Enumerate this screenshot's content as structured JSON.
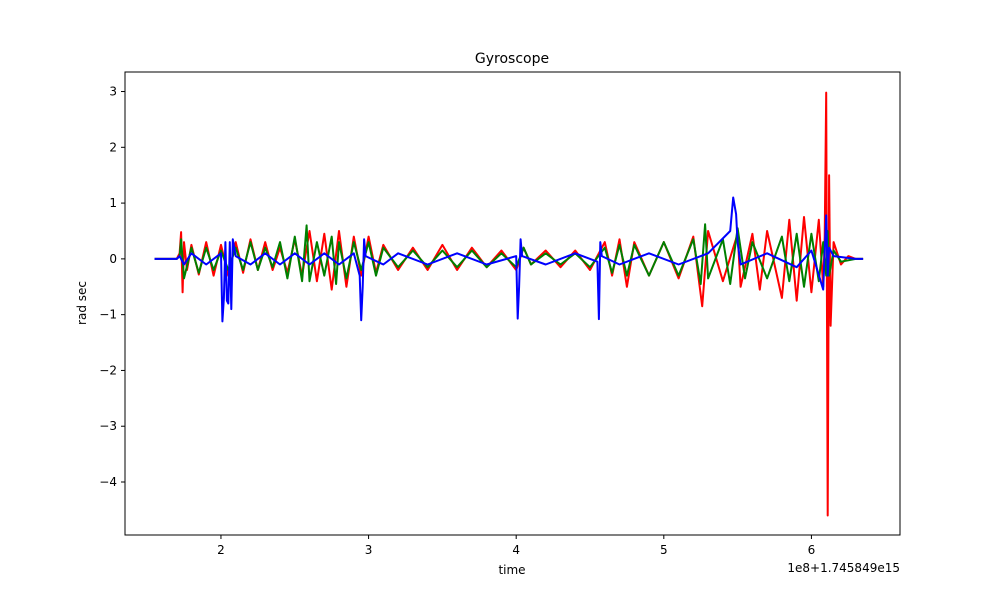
{
  "chart_data": {
    "type": "line",
    "title": "Gyroscope",
    "xlabel": "time",
    "ylabel": "rad sec",
    "x_offset_label": "1e8+1.745849e15",
    "xlim": [
      1.35,
      6.6
    ],
    "ylim": [
      -4.95,
      3.35
    ],
    "x_ticks": [
      2,
      3,
      4,
      5,
      6
    ],
    "y_ticks": [
      3,
      2,
      1,
      0,
      -1,
      -2,
      -3,
      -4
    ],
    "x_tick_labels": [
      "2",
      "3",
      "4",
      "5",
      "6"
    ],
    "y_tick_labels": [
      "3",
      "2",
      "1",
      "0",
      "−1",
      "−2",
      "−3",
      "−4"
    ],
    "grid": false,
    "legend": "none",
    "series": [
      {
        "color": "#ff0000",
        "points": [
          [
            1.55,
            0
          ],
          [
            1.7,
            0
          ],
          [
            1.72,
            0.1
          ],
          [
            1.73,
            0.48
          ],
          [
            1.74,
            -0.6
          ],
          [
            1.75,
            0.3
          ],
          [
            1.77,
            -0.2
          ],
          [
            1.8,
            0.25
          ],
          [
            1.85,
            -0.28
          ],
          [
            1.9,
            0.3
          ],
          [
            1.95,
            -0.3
          ],
          [
            2.0,
            0.25
          ],
          [
            2.05,
            -0.3
          ],
          [
            2.1,
            0.3
          ],
          [
            2.15,
            -0.25
          ],
          [
            2.2,
            0.35
          ],
          [
            2.25,
            -0.2
          ],
          [
            2.3,
            0.3
          ],
          [
            2.35,
            -0.2
          ],
          [
            2.4,
            0.2
          ],
          [
            2.45,
            -0.25
          ],
          [
            2.5,
            0.35
          ],
          [
            2.55,
            -0.3
          ],
          [
            2.6,
            0.5
          ],
          [
            2.65,
            -0.4
          ],
          [
            2.7,
            0.45
          ],
          [
            2.75,
            -0.55
          ],
          [
            2.8,
            0.5
          ],
          [
            2.85,
            -0.5
          ],
          [
            2.9,
            0.4
          ],
          [
            2.95,
            -0.3
          ],
          [
            3.0,
            0.4
          ],
          [
            3.05,
            -0.25
          ],
          [
            3.1,
            0.25
          ],
          [
            3.2,
            -0.2
          ],
          [
            3.3,
            0.2
          ],
          [
            3.4,
            -0.2
          ],
          [
            3.5,
            0.25
          ],
          [
            3.6,
            -0.2
          ],
          [
            3.7,
            0.2
          ],
          [
            3.8,
            -0.15
          ],
          [
            3.9,
            0.15
          ],
          [
            4.0,
            -0.2
          ],
          [
            4.05,
            0.2
          ],
          [
            4.1,
            -0.1
          ],
          [
            4.2,
            0.15
          ],
          [
            4.3,
            -0.15
          ],
          [
            4.4,
            0.15
          ],
          [
            4.5,
            -0.2
          ],
          [
            4.6,
            0.3
          ],
          [
            4.65,
            -0.3
          ],
          [
            4.7,
            0.35
          ],
          [
            4.75,
            -0.5
          ],
          [
            4.8,
            0.3
          ],
          [
            4.9,
            -0.3
          ],
          [
            5.0,
            0.3
          ],
          [
            5.1,
            -0.35
          ],
          [
            5.2,
            0.4
          ],
          [
            5.26,
            -0.85
          ],
          [
            5.3,
            0.5
          ],
          [
            5.4,
            -0.4
          ],
          [
            5.5,
            0.45
          ],
          [
            5.52,
            -0.5
          ],
          [
            5.6,
            0.45
          ],
          [
            5.65,
            -0.55
          ],
          [
            5.7,
            0.5
          ],
          [
            5.8,
            -0.7
          ],
          [
            5.85,
            0.7
          ],
          [
            5.9,
            -0.75
          ],
          [
            5.95,
            0.75
          ],
          [
            6.0,
            -0.6
          ],
          [
            6.05,
            0.7
          ],
          [
            6.08,
            -0.5
          ],
          [
            6.09,
            0.4
          ],
          [
            6.1,
            2.98
          ],
          [
            6.11,
            -4.6
          ],
          [
            6.12,
            1.5
          ],
          [
            6.13,
            -1.2
          ],
          [
            6.15,
            0.3
          ],
          [
            6.2,
            -0.1
          ],
          [
            6.25,
            0.05
          ],
          [
            6.3,
            0
          ],
          [
            6.35,
            0
          ]
        ]
      },
      {
        "color": "#008000",
        "points": [
          [
            1.55,
            0
          ],
          [
            1.7,
            0
          ],
          [
            1.72,
            0.05
          ],
          [
            1.73,
            0.35
          ],
          [
            1.75,
            -0.35
          ],
          [
            1.8,
            0.2
          ],
          [
            1.85,
            -0.25
          ],
          [
            1.9,
            0.2
          ],
          [
            1.95,
            -0.2
          ],
          [
            2.0,
            0.15
          ],
          [
            2.05,
            -0.2
          ],
          [
            2.1,
            0.2
          ],
          [
            2.15,
            -0.2
          ],
          [
            2.2,
            0.3
          ],
          [
            2.25,
            -0.2
          ],
          [
            2.3,
            0.2
          ],
          [
            2.35,
            -0.15
          ],
          [
            2.4,
            0.3
          ],
          [
            2.45,
            -0.35
          ],
          [
            2.5,
            0.4
          ],
          [
            2.55,
            -0.4
          ],
          [
            2.58,
            0.6
          ],
          [
            2.6,
            -0.4
          ],
          [
            2.65,
            0.3
          ],
          [
            2.7,
            -0.3
          ],
          [
            2.75,
            0.4
          ],
          [
            2.78,
            -0.45
          ],
          [
            2.8,
            0.3
          ],
          [
            2.85,
            -0.35
          ],
          [
            2.9,
            0.3
          ],
          [
            2.95,
            -0.2
          ],
          [
            3.0,
            0.3
          ],
          [
            3.05,
            -0.3
          ],
          [
            3.1,
            0.2
          ],
          [
            3.2,
            -0.15
          ],
          [
            3.3,
            0.15
          ],
          [
            3.4,
            -0.15
          ],
          [
            3.5,
            0.15
          ],
          [
            3.6,
            -0.15
          ],
          [
            3.7,
            0.15
          ],
          [
            3.8,
            -0.15
          ],
          [
            3.9,
            0.1
          ],
          [
            4.0,
            -0.15
          ],
          [
            4.05,
            0.2
          ],
          [
            4.1,
            -0.1
          ],
          [
            4.2,
            0.1
          ],
          [
            4.3,
            -0.1
          ],
          [
            4.4,
            0.1
          ],
          [
            4.5,
            -0.15
          ],
          [
            4.6,
            0.2
          ],
          [
            4.65,
            -0.25
          ],
          [
            4.7,
            0.25
          ],
          [
            4.75,
            -0.3
          ],
          [
            4.8,
            0.25
          ],
          [
            4.9,
            -0.3
          ],
          [
            5.0,
            0.3
          ],
          [
            5.1,
            -0.3
          ],
          [
            5.2,
            0.35
          ],
          [
            5.25,
            -0.45
          ],
          [
            5.28,
            0.62
          ],
          [
            5.3,
            -0.35
          ],
          [
            5.4,
            0.35
          ],
          [
            5.45,
            -0.45
          ],
          [
            5.5,
            0.55
          ],
          [
            5.55,
            -0.35
          ],
          [
            5.6,
            0.3
          ],
          [
            5.7,
            -0.35
          ],
          [
            5.8,
            0.4
          ],
          [
            5.85,
            -0.4
          ],
          [
            5.9,
            0.45
          ],
          [
            5.95,
            -0.5
          ],
          [
            6.0,
            0.45
          ],
          [
            6.05,
            -0.4
          ],
          [
            6.08,
            0.3
          ],
          [
            6.1,
            -0.3
          ],
          [
            6.11,
            0.5
          ],
          [
            6.12,
            -0.3
          ],
          [
            6.15,
            0.15
          ],
          [
            6.2,
            -0.05
          ],
          [
            6.3,
            0
          ],
          [
            6.35,
            0
          ]
        ]
      },
      {
        "color": "#0000ff",
        "points": [
          [
            1.55,
            0
          ],
          [
            1.7,
            0
          ],
          [
            1.72,
            0.05
          ],
          [
            1.75,
            -0.1
          ],
          [
            1.8,
            0.1
          ],
          [
            1.9,
            -0.1
          ],
          [
            2.0,
            0.1
          ],
          [
            2.01,
            -1.12
          ],
          [
            2.02,
            -0.7
          ],
          [
            2.03,
            0.3
          ],
          [
            2.04,
            -0.75
          ],
          [
            2.05,
            -0.8
          ],
          [
            2.06,
            0.3
          ],
          [
            2.07,
            -0.9
          ],
          [
            2.08,
            0.35
          ],
          [
            2.1,
            0.05
          ],
          [
            2.2,
            -0.1
          ],
          [
            2.3,
            0.1
          ],
          [
            2.4,
            -0.1
          ],
          [
            2.5,
            0.1
          ],
          [
            2.6,
            -0.1
          ],
          [
            2.7,
            0.1
          ],
          [
            2.8,
            -0.1
          ],
          [
            2.9,
            0.1
          ],
          [
            2.94,
            -0.3
          ],
          [
            2.95,
            -1.1
          ],
          [
            2.96,
            -0.5
          ],
          [
            2.97,
            0.35
          ],
          [
            2.98,
            0.05
          ],
          [
            3.1,
            -0.1
          ],
          [
            3.2,
            0.1
          ],
          [
            3.4,
            -0.1
          ],
          [
            3.6,
            0.1
          ],
          [
            3.8,
            -0.1
          ],
          [
            4.0,
            0.05
          ],
          [
            4.01,
            -1.07
          ],
          [
            4.02,
            -0.5
          ],
          [
            4.03,
            0.35
          ],
          [
            4.04,
            0.05
          ],
          [
            4.2,
            -0.1
          ],
          [
            4.4,
            0.1
          ],
          [
            4.55,
            -0.05
          ],
          [
            4.56,
            -1.08
          ],
          [
            4.57,
            0.3
          ],
          [
            4.58,
            0.05
          ],
          [
            4.7,
            -0.1
          ],
          [
            4.9,
            0.1
          ],
          [
            5.1,
            -0.1
          ],
          [
            5.3,
            0.1
          ],
          [
            5.45,
            0.5
          ],
          [
            5.47,
            1.1
          ],
          [
            5.49,
            0.8
          ],
          [
            5.5,
            0.3
          ],
          [
            5.52,
            -0.1
          ],
          [
            5.7,
            0.1
          ],
          [
            5.9,
            -0.15
          ],
          [
            6.0,
            0.15
          ],
          [
            6.08,
            -0.55
          ],
          [
            6.1,
            0.78
          ],
          [
            6.11,
            -0.3
          ],
          [
            6.12,
            0.2
          ],
          [
            6.15,
            0.05
          ],
          [
            6.3,
            0
          ],
          [
            6.35,
            0
          ]
        ]
      }
    ]
  }
}
